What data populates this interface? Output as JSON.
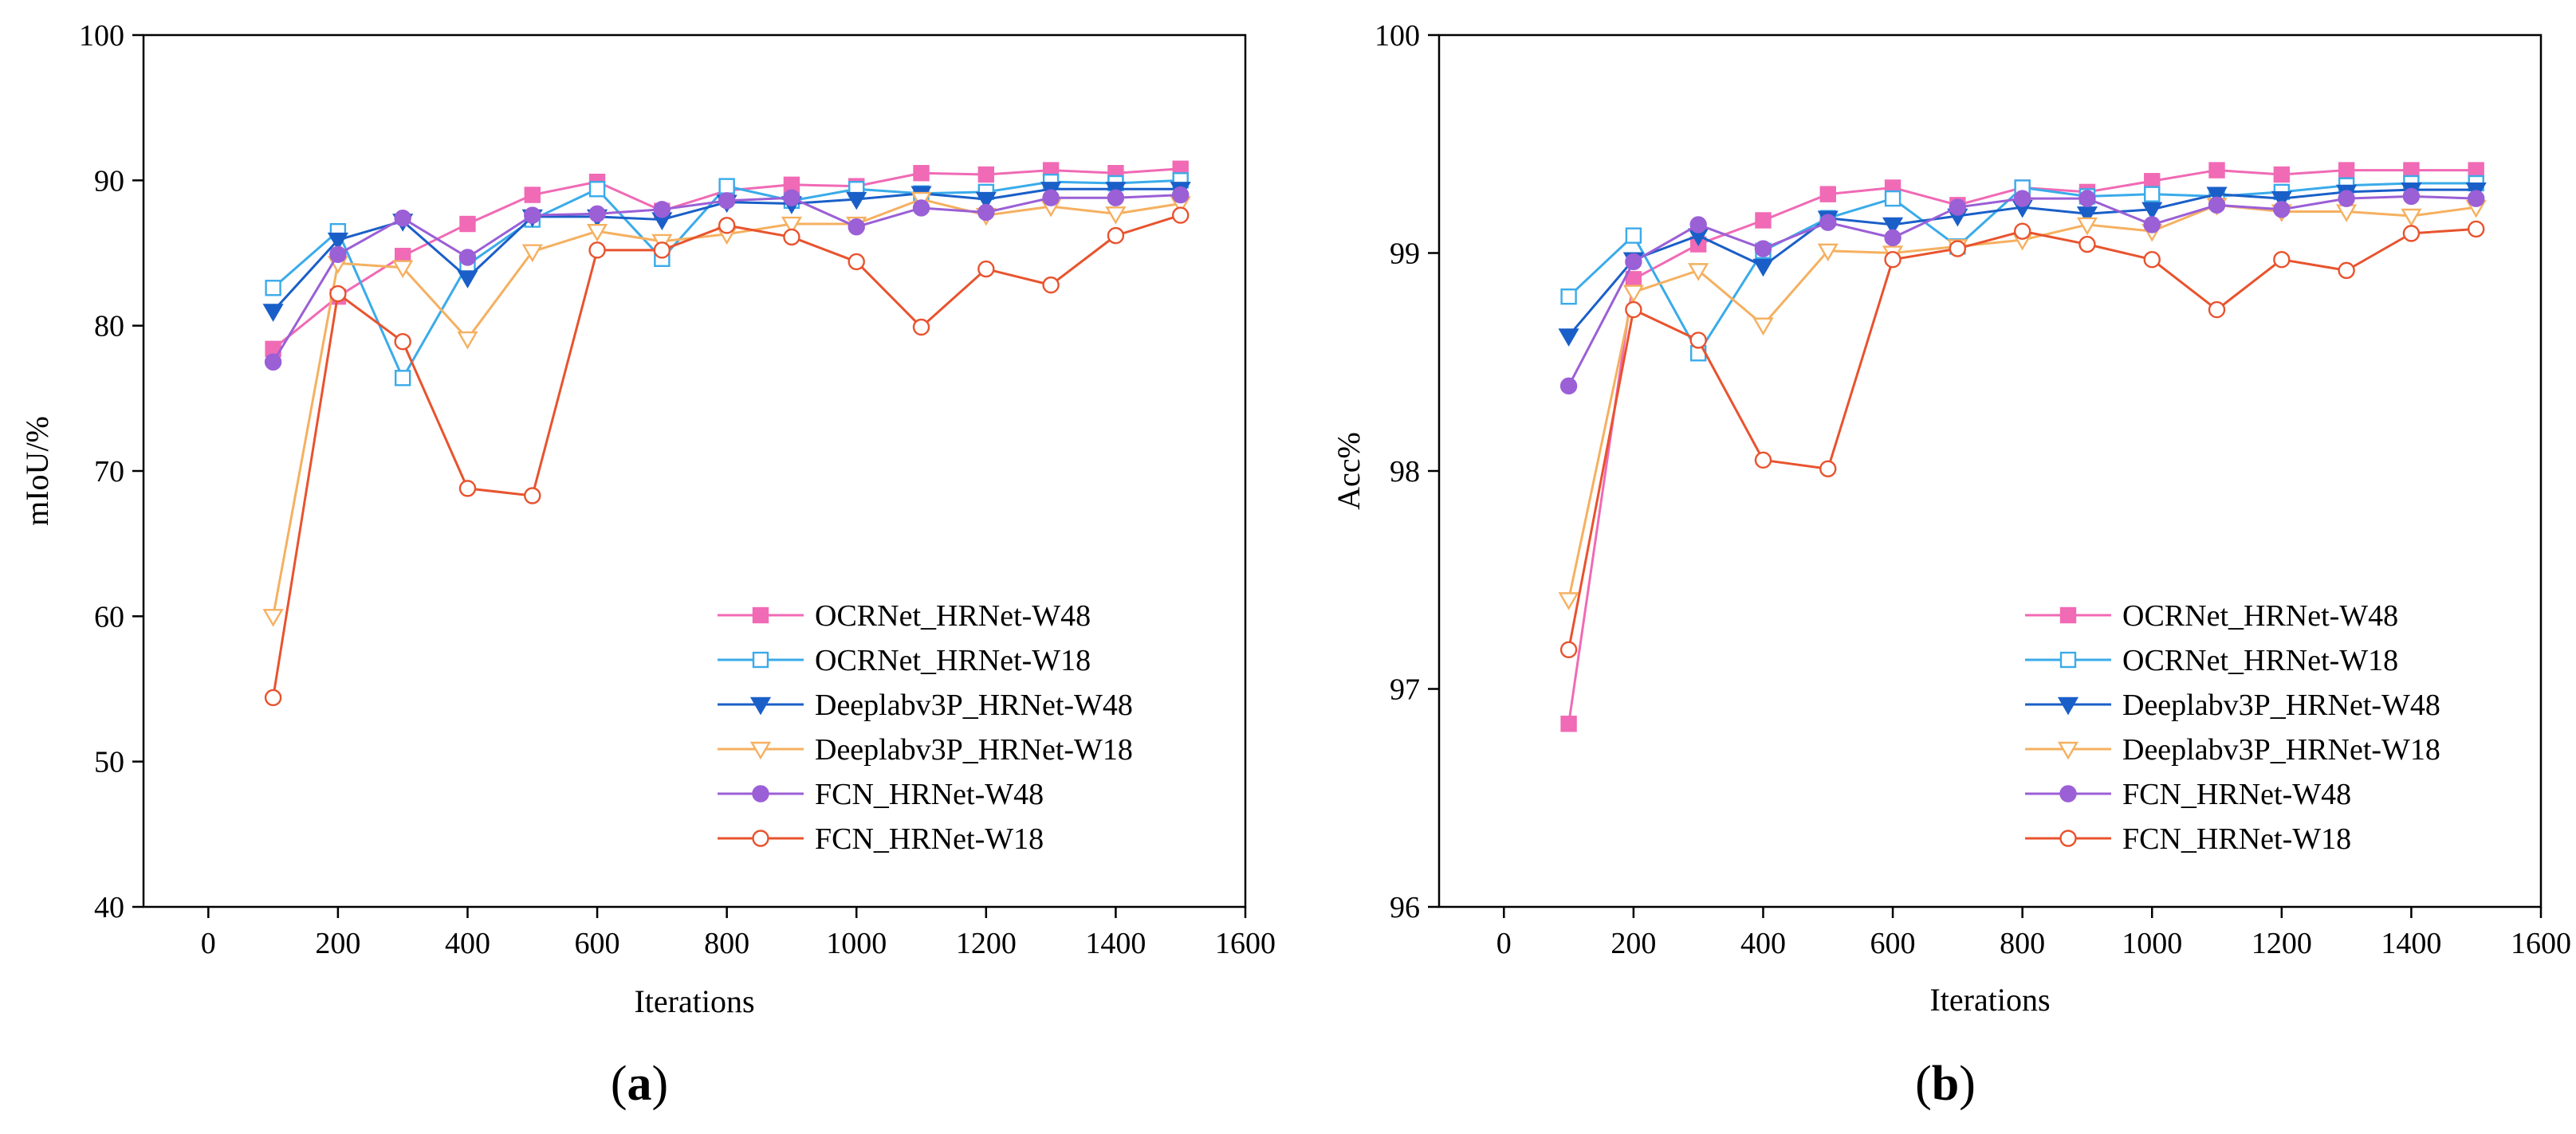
{
  "chart_data": [
    {
      "type": "line",
      "panel_label": "a",
      "xlabel": "Iterations",
      "ylabel": "mIoU/%",
      "xlim": [
        -100,
        1600
      ],
      "ylim": [
        40,
        100
      ],
      "x_ticks": [
        0,
        200,
        400,
        600,
        800,
        1000,
        1200,
        1400,
        1600
      ],
      "y_ticks": [
        40,
        50,
        60,
        70,
        80,
        90,
        100
      ],
      "grid": false,
      "legend_position": "bottom-right",
      "x": [
        100,
        200,
        300,
        400,
        500,
        600,
        700,
        800,
        900,
        1000,
        1100,
        1200,
        1300,
        1400,
        1500
      ],
      "series": [
        {
          "name": "OCRNet_HRNet-W48",
          "color": "#f06ab5",
          "marker": "square-filled",
          "values": [
            78.4,
            82.0,
            84.8,
            87.0,
            89.0,
            89.9,
            87.9,
            89.3,
            89.7,
            89.6,
            90.5,
            90.4,
            90.7,
            90.5,
            90.8
          ]
        },
        {
          "name": "OCRNet_HRNet-W18",
          "color": "#3aabea",
          "marker": "square-open",
          "values": [
            82.6,
            86.5,
            76.4,
            84.2,
            87.3,
            89.4,
            84.6,
            89.6,
            88.6,
            89.4,
            89.1,
            89.2,
            89.9,
            89.8,
            90.0
          ]
        },
        {
          "name": "Deeplabv3P_HRNet-W48",
          "color": "#1a5fc8",
          "marker": "triangle-down-filled",
          "values": [
            81.0,
            85.9,
            87.2,
            83.3,
            87.5,
            87.5,
            87.3,
            88.5,
            88.4,
            88.7,
            89.1,
            88.7,
            89.4,
            89.4,
            89.4
          ]
        },
        {
          "name": "Deeplabv3P_HRNet-W18",
          "color": "#f5b060",
          "marker": "triangle-down-open",
          "values": [
            60.0,
            84.3,
            84.0,
            79.1,
            85.1,
            86.5,
            85.8,
            86.3,
            87.0,
            87.0,
            88.7,
            87.6,
            88.2,
            87.7,
            88.4
          ]
        },
        {
          "name": "FCN_HRNet-W48",
          "color": "#9b5fd6",
          "marker": "circle-filled",
          "values": [
            77.5,
            84.9,
            87.4,
            84.7,
            87.6,
            87.7,
            88.0,
            88.6,
            88.8,
            86.8,
            88.1,
            87.8,
            88.8,
            88.8,
            89.0
          ]
        },
        {
          "name": "FCN_HRNet-W18",
          "color": "#e8532e",
          "marker": "circle-open",
          "values": [
            54.4,
            82.2,
            78.9,
            68.8,
            68.3,
            85.2,
            85.2,
            86.9,
            86.1,
            84.4,
            79.9,
            83.9,
            82.8,
            86.2,
            87.6
          ]
        }
      ]
    },
    {
      "type": "line",
      "panel_label": "b",
      "xlabel": "Iterations",
      "ylabel": "Acc%",
      "xlim": [
        -100,
        1600
      ],
      "ylim": [
        96,
        100
      ],
      "x_ticks": [
        0,
        200,
        400,
        600,
        800,
        1000,
        1200,
        1400,
        1600
      ],
      "y_ticks": [
        96,
        97,
        98,
        99,
        100
      ],
      "grid": false,
      "legend_position": "bottom-right",
      "x": [
        100,
        200,
        300,
        400,
        500,
        600,
        700,
        800,
        900,
        1000,
        1100,
        1200,
        1300,
        1400,
        1500
      ],
      "series": [
        {
          "name": "OCRNet_HRNet-W48",
          "color": "#f06ab5",
          "marker": "square-filled",
          "values": [
            96.84,
            98.88,
            99.04,
            99.15,
            99.27,
            99.3,
            99.22,
            99.3,
            99.28,
            99.33,
            99.38,
            99.36,
            99.38,
            99.38,
            99.38
          ]
        },
        {
          "name": "OCRNet_HRNet-W18",
          "color": "#3aabea",
          "marker": "square-open",
          "values": [
            98.8,
            99.08,
            98.54,
            99.01,
            99.16,
            99.25,
            99.03,
            99.3,
            99.26,
            99.27,
            99.26,
            99.28,
            99.31,
            99.32,
            99.32
          ]
        },
        {
          "name": "Deeplabv3P_HRNet-W48",
          "color": "#1a5fc8",
          "marker": "triangle-down-filled",
          "values": [
            98.62,
            98.97,
            99.08,
            98.94,
            99.16,
            99.13,
            99.17,
            99.21,
            99.18,
            99.2,
            99.27,
            99.25,
            99.28,
            99.29,
            99.29
          ]
        },
        {
          "name": "Deeplabv3P_HRNet-W18",
          "color": "#f5b060",
          "marker": "triangle-down-open",
          "values": [
            97.41,
            98.82,
            98.92,
            98.67,
            99.01,
            99.0,
            99.03,
            99.06,
            99.13,
            99.1,
            99.22,
            99.19,
            99.19,
            99.17,
            99.21
          ]
        },
        {
          "name": "FCN_HRNet-W48",
          "color": "#9b5fd6",
          "marker": "circle-filled",
          "values": [
            98.39,
            98.96,
            99.13,
            99.02,
            99.14,
            99.07,
            99.21,
            99.25,
            99.25,
            99.13,
            99.22,
            99.2,
            99.25,
            99.26,
            99.25
          ]
        },
        {
          "name": "FCN_HRNet-W18",
          "color": "#e8532e",
          "marker": "circle-open",
          "values": [
            97.18,
            98.74,
            98.6,
            98.05,
            98.01,
            98.97,
            99.02,
            99.1,
            99.04,
            98.97,
            98.74,
            98.97,
            98.92,
            99.09,
            99.11
          ]
        }
      ]
    }
  ]
}
